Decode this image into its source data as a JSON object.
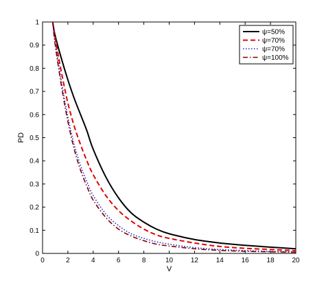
{
  "chart_data": {
    "type": "line",
    "title": "",
    "xlabel": "V",
    "ylabel": "PD",
    "xlim": [
      0,
      20
    ],
    "ylim": [
      0,
      1
    ],
    "xticks": [
      0,
      2,
      4,
      6,
      8,
      10,
      12,
      14,
      16,
      18,
      20
    ],
    "yticks": [
      0,
      0.1,
      0.2,
      0.3,
      0.4,
      0.5,
      0.6,
      0.7,
      0.8,
      0.9,
      1
    ],
    "xtick_labels": [
      "0",
      "2",
      "4",
      "6",
      "8",
      "10",
      "12",
      "14",
      "16",
      "18",
      "20"
    ],
    "ytick_labels": [
      "0",
      "0.1",
      "0.2",
      "0.3",
      "0.4",
      "0.5",
      "0.6",
      "0.7",
      "0.8",
      "0.9",
      "1"
    ],
    "grid": false,
    "legend_position": "top-right",
    "series": [
      {
        "name": "ψ=50%",
        "color": "#000000",
        "style": "solid",
        "x": [
          0.8,
          1,
          1.5,
          2,
          2.5,
          3,
          3.5,
          4,
          5,
          6,
          7,
          8,
          9,
          10,
          12,
          14,
          16,
          18,
          20
        ],
        "y": [
          1.0,
          0.94,
          0.84,
          0.75,
          0.67,
          0.6,
          0.53,
          0.45,
          0.33,
          0.24,
          0.175,
          0.135,
          0.105,
          0.085,
          0.06,
          0.045,
          0.035,
          0.027,
          0.02
        ]
      },
      {
        "name": "ψ=70%",
        "color": "#e00000",
        "style": "dashed",
        "x": [
          0.8,
          1,
          1.5,
          2,
          2.5,
          3,
          3.5,
          4,
          5,
          6,
          7,
          8,
          9,
          10,
          12,
          14,
          16,
          18,
          20
        ],
        "y": [
          1.0,
          0.93,
          0.78,
          0.65,
          0.55,
          0.47,
          0.4,
          0.34,
          0.25,
          0.185,
          0.14,
          0.105,
          0.08,
          0.065,
          0.045,
          0.03,
          0.022,
          0.017,
          0.012
        ]
      },
      {
        "name": "ψ=70%",
        "color": "#2020c0",
        "style": "dotted",
        "x": [
          0.8,
          1,
          1.5,
          2,
          2.5,
          3,
          3.5,
          4,
          5,
          6,
          7,
          8,
          9,
          10,
          12,
          14,
          16,
          18,
          20
        ],
        "y": [
          1.0,
          0.91,
          0.74,
          0.59,
          0.47,
          0.38,
          0.31,
          0.25,
          0.17,
          0.12,
          0.085,
          0.065,
          0.05,
          0.04,
          0.025,
          0.017,
          0.012,
          0.009,
          0.006
        ]
      },
      {
        "name": "ψ=100%",
        "color": "#7a0000",
        "style": "dashdot",
        "x": [
          0.8,
          1,
          1.5,
          2,
          2.5,
          3,
          3.5,
          4,
          5,
          6,
          7,
          8,
          9,
          10,
          12,
          14,
          16,
          18,
          20
        ],
        "y": [
          1.0,
          0.9,
          0.72,
          0.57,
          0.45,
          0.36,
          0.29,
          0.23,
          0.155,
          0.105,
          0.075,
          0.055,
          0.04,
          0.032,
          0.02,
          0.013,
          0.009,
          0.007,
          0.005
        ]
      }
    ]
  }
}
